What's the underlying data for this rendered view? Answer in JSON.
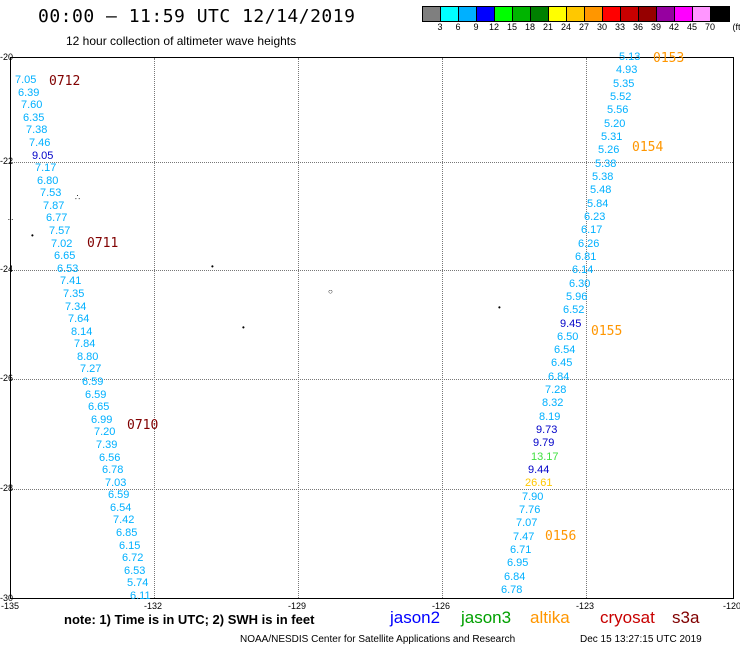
{
  "header": {
    "title": "00:00 – 11:59 UTC 12/14/2019",
    "subtitle": "12 hour collection of altimeter wave heights"
  },
  "colorbar": {
    "colors": [
      "#7f7f7f",
      "#00ffff",
      "#00b0ff",
      "#0000ff",
      "#00ff00",
      "#00b400",
      "#008000",
      "#ffff00",
      "#ffc800",
      "#ff9600",
      "#ff0000",
      "#c80000",
      "#960000",
      "#9600a0",
      "#ff00ff",
      "#ff96ff",
      "#000000"
    ],
    "labels": [
      "3",
      "6",
      "9",
      "12",
      "15",
      "18",
      "21",
      "24",
      "27",
      "30",
      "33",
      "36",
      "39",
      "42",
      "45",
      "70",
      "(ft)"
    ]
  },
  "axes": {
    "y_ticks": [
      "-20",
      "-22",
      "-24",
      "-26",
      "-28",
      "-30"
    ],
    "x_ticks": [
      "-135",
      "-132",
      "-129",
      "-126",
      "-123",
      "-120"
    ]
  },
  "map_data": {
    "west_track": [
      {
        "v": "7.05",
        "c": "#00b0ff"
      },
      {
        "v": "6.39",
        "c": "#00b0ff"
      },
      {
        "v": "7.60",
        "c": "#00b0ff"
      },
      {
        "v": "6.35",
        "c": "#00b0ff"
      },
      {
        "v": "7.38",
        "c": "#00b0ff"
      },
      {
        "v": "7.46",
        "c": "#00b0ff"
      },
      {
        "v": "9.05",
        "c": "#0000c8"
      },
      {
        "v": "7.17",
        "c": "#00b0ff"
      },
      {
        "v": "6.80",
        "c": "#00b0ff"
      },
      {
        "v": "7.53",
        "c": "#00b0ff"
      },
      {
        "v": "7.87",
        "c": "#00b0ff"
      },
      {
        "v": "6.77",
        "c": "#00b0ff"
      },
      {
        "v": "7.57",
        "c": "#00b0ff"
      },
      {
        "v": "7.02",
        "c": "#00b0ff"
      },
      {
        "v": "6.65",
        "c": "#00b0ff"
      },
      {
        "v": "6.53",
        "c": "#00b0ff"
      },
      {
        "v": "7.41",
        "c": "#00b0ff"
      },
      {
        "v": "7.35",
        "c": "#00b0ff"
      },
      {
        "v": "7.34",
        "c": "#00b0ff"
      },
      {
        "v": "7.64",
        "c": "#00b0ff"
      },
      {
        "v": "8.14",
        "c": "#00b0ff"
      },
      {
        "v": "7.84",
        "c": "#00b0ff"
      },
      {
        "v": "8.80",
        "c": "#00b0ff"
      },
      {
        "v": "7.27",
        "c": "#00b0ff"
      },
      {
        "v": "6.59",
        "c": "#00b0ff"
      },
      {
        "v": "6.59",
        "c": "#00b0ff"
      },
      {
        "v": "6.65",
        "c": "#00b0ff"
      },
      {
        "v": "6.99",
        "c": "#00b0ff"
      },
      {
        "v": "7.20",
        "c": "#00b0ff"
      },
      {
        "v": "7.39",
        "c": "#00b0ff"
      },
      {
        "v": "6.56",
        "c": "#00b0ff"
      },
      {
        "v": "6.78",
        "c": "#00b0ff"
      },
      {
        "v": "7.03",
        "c": "#00b0ff"
      },
      {
        "v": "6.59",
        "c": "#00b0ff"
      },
      {
        "v": "6.54",
        "c": "#00b0ff"
      },
      {
        "v": "7.42",
        "c": "#00b0ff"
      },
      {
        "v": "6.85",
        "c": "#00b0ff"
      },
      {
        "v": "6.15",
        "c": "#00b0ff"
      },
      {
        "v": "6.72",
        "c": "#00b0ff"
      },
      {
        "v": "6.53",
        "c": "#00b0ff"
      },
      {
        "v": "5.74",
        "c": "#00b0ff"
      },
      {
        "v": "6.11",
        "c": "#00b0ff"
      }
    ],
    "east_track": [
      {
        "v": "5.13",
        "c": "#00b0ff"
      },
      {
        "v": "4.93",
        "c": "#00b0ff"
      },
      {
        "v": "5.35",
        "c": "#00b0ff"
      },
      {
        "v": "5.52",
        "c": "#00b0ff"
      },
      {
        "v": "5.56",
        "c": "#00b0ff"
      },
      {
        "v": "5.20",
        "c": "#00b0ff"
      },
      {
        "v": "5.31",
        "c": "#00b0ff"
      },
      {
        "v": "5.26",
        "c": "#00b0ff"
      },
      {
        "v": "5.38",
        "c": "#00b0ff"
      },
      {
        "v": "5.38",
        "c": "#00b0ff"
      },
      {
        "v": "5.48",
        "c": "#00b0ff"
      },
      {
        "v": "5.84",
        "c": "#00b0ff"
      },
      {
        "v": "6.23",
        "c": "#00b0ff"
      },
      {
        "v": "6.17",
        "c": "#00b0ff"
      },
      {
        "v": "6.26",
        "c": "#00b0ff"
      },
      {
        "v": "6.81",
        "c": "#00b0ff"
      },
      {
        "v": "6.14",
        "c": "#00b0ff"
      },
      {
        "v": "6.30",
        "c": "#00b0ff"
      },
      {
        "v": "5.96",
        "c": "#00b0ff"
      },
      {
        "v": "6.52",
        "c": "#00b0ff"
      },
      {
        "v": "9.45",
        "c": "#0000c8"
      },
      {
        "v": "6.50",
        "c": "#00b0ff"
      },
      {
        "v": "6.54",
        "c": "#00b0ff"
      },
      {
        "v": "6.45",
        "c": "#00b0ff"
      },
      {
        "v": "6.84",
        "c": "#00b0ff"
      },
      {
        "v": "7.28",
        "c": "#00b0ff"
      },
      {
        "v": "8.32",
        "c": "#00b0ff"
      },
      {
        "v": "8.19",
        "c": "#00b0ff"
      },
      {
        "v": "9.73",
        "c": "#0000c8"
      },
      {
        "v": "9.79",
        "c": "#0000c8"
      },
      {
        "v": "13.17",
        "c": "#40e040"
      },
      {
        "v": "9.44",
        "c": "#0000c8"
      },
      {
        "v": "26.61",
        "c": "#ffc800"
      },
      {
        "v": "7.90",
        "c": "#00b0ff"
      },
      {
        "v": "7.76",
        "c": "#00b0ff"
      },
      {
        "v": "7.07",
        "c": "#00b0ff"
      },
      {
        "v": "7.47",
        "c": "#00b0ff"
      },
      {
        "v": "6.71",
        "c": "#00b0ff"
      },
      {
        "v": "6.95",
        "c": "#00b0ff"
      },
      {
        "v": "6.84",
        "c": "#00b0ff"
      },
      {
        "v": "6.78",
        "c": "#00b0ff"
      }
    ],
    "time_labels": [
      {
        "t": "0712",
        "c": "#800000"
      },
      {
        "t": "0711",
        "c": "#800000"
      },
      {
        "t": "0710",
        "c": "#800000"
      },
      {
        "t": "0153",
        "c": "#ff9600"
      },
      {
        "t": "0154",
        "c": "#ff9600"
      },
      {
        "t": "0155",
        "c": "#ff9600"
      },
      {
        "t": "0156",
        "c": "#ff9600"
      }
    ]
  },
  "footer": {
    "note": "note:  1) Time is in UTC;  2) SWH is in feet",
    "satellites": [
      {
        "name": "jason2",
        "c": "#0000ff"
      },
      {
        "name": "jason3",
        "c": "#00a000"
      },
      {
        "name": "altika",
        "c": "#ff9600"
      },
      {
        "name": "cryosat",
        "c": "#c80000"
      },
      {
        "name": "s3a",
        "c": "#800000"
      }
    ],
    "credit": "NOAA/NESDIS Center for Satellite Applications and Research",
    "timestamp": "Dec 15 13:27:15 UTC 2019"
  }
}
